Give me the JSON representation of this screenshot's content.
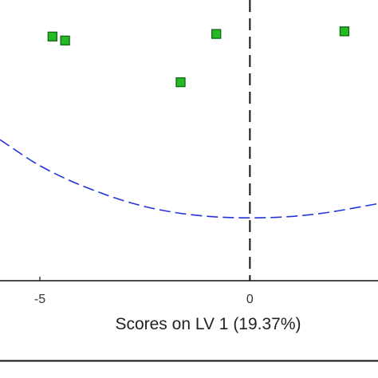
{
  "chart_data": {
    "type": "scatter",
    "xlabel": "Scores on LV 1 (19.37%)",
    "ylabel": "",
    "x_ticks": [
      -5,
      0
    ],
    "x_tick_labels": [
      "-5",
      "0"
    ],
    "xlim": [
      -5.95,
      3.05
    ],
    "ylim": [
      -1.15,
      1.0
    ],
    "grid": false,
    "series": [
      {
        "marker": "square",
        "color": "#22bb22",
        "edge_color": "#116611",
        "points": [
          {
            "x": -4.7,
            "y": 0.72
          },
          {
            "x": -4.4,
            "y": 0.69
          },
          {
            "x": -0.8,
            "y": 0.74
          },
          {
            "x": -1.65,
            "y": 0.37
          },
          {
            "x": 2.25,
            "y": 0.76
          }
        ]
      }
    ],
    "confidence_ellipse": {
      "style": "dashed",
      "color": "#2233dd",
      "points": [
        {
          "x": -5.95,
          "y": -0.07
        },
        {
          "x": -4.8,
          "y": -0.32
        },
        {
          "x": -3.0,
          "y": -0.55
        },
        {
          "x": -1.5,
          "y": -0.65
        },
        {
          "x": 0.0,
          "y": -0.675
        },
        {
          "x": 1.5,
          "y": -0.65
        },
        {
          "x": 3.05,
          "y": -0.56
        }
      ]
    },
    "zero_line": {
      "x": 0,
      "style": "dashed",
      "color": "#111111"
    }
  }
}
